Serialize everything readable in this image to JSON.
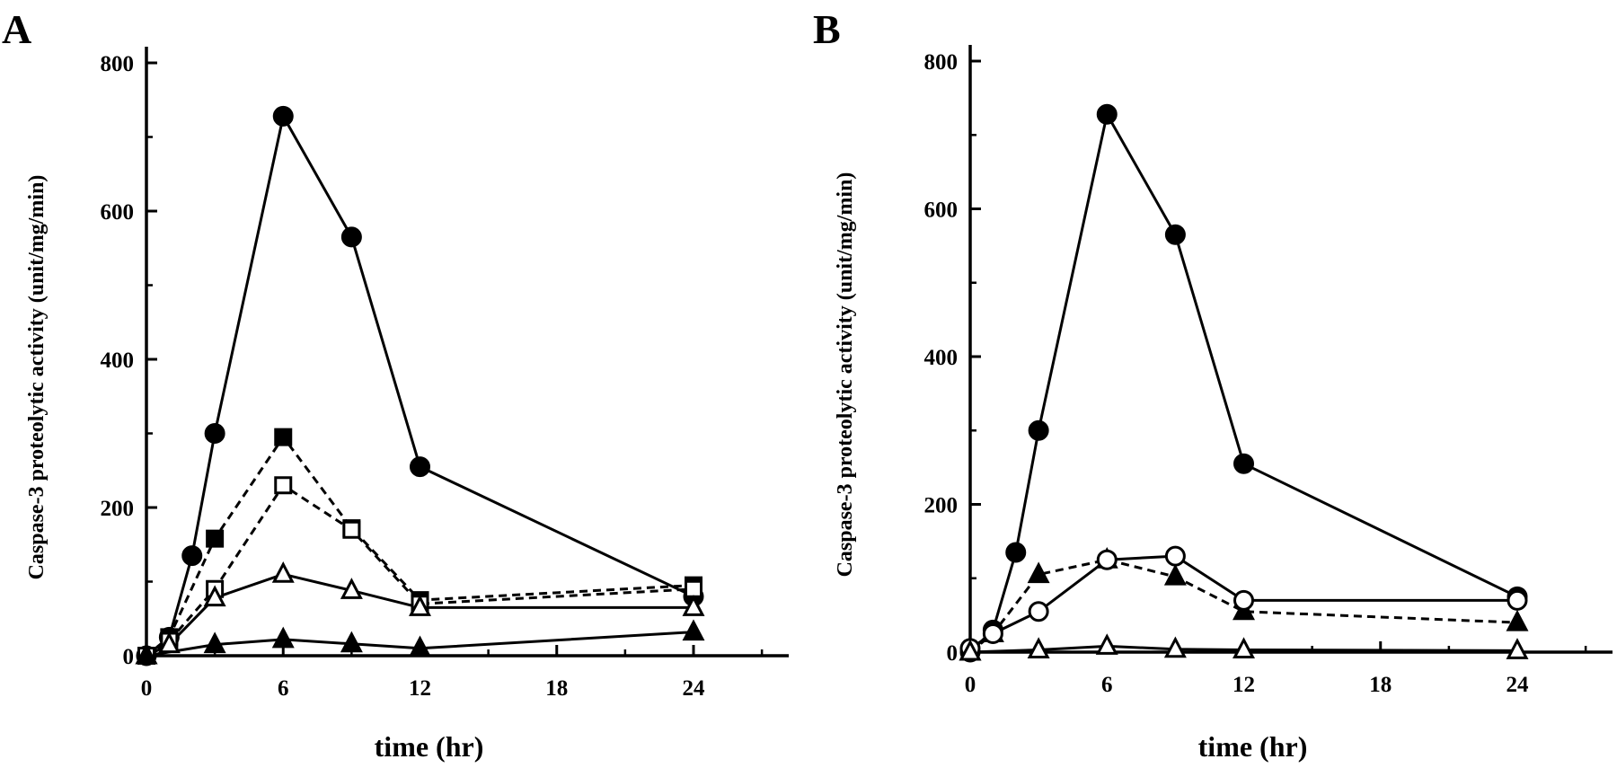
{
  "chart_data": [
    {
      "type": "line",
      "panel_label": "A",
      "xlabel": "time (hr)",
      "ylabel": "Caspase-3 proteolytic activity (unit/mg/min)",
      "xlim": [
        0,
        28
      ],
      "ylim": [
        0,
        820
      ],
      "xticks": [
        0,
        6,
        12,
        18,
        24
      ],
      "yticks": [
        0,
        200,
        400,
        600,
        800
      ],
      "grid": false,
      "series": [
        {
          "marker": "circle-filled",
          "line": "solid",
          "points": [
            [
              0,
              0
            ],
            [
              1,
              25
            ],
            [
              2,
              135
            ],
            [
              3,
              300
            ],
            [
              6,
              728
            ],
            [
              9,
              565
            ],
            [
              12,
              255
            ],
            [
              24,
              80
            ]
          ]
        },
        {
          "marker": "square-filled",
          "line": "dashed",
          "points": [
            [
              0,
              0
            ],
            [
              1,
              25
            ],
            [
              3,
              158
            ],
            [
              6,
              295
            ],
            [
              9,
              172
            ],
            [
              12,
              75
            ],
            [
              24,
              95
            ]
          ]
        },
        {
          "marker": "square-open",
          "line": "dashed",
          "points": [
            [
              0,
              0
            ],
            [
              1,
              20
            ],
            [
              3,
              90
            ],
            [
              6,
              230
            ],
            [
              9,
              170
            ],
            [
              12,
              70
            ],
            [
              24,
              90
            ]
          ]
        },
        {
          "marker": "triangle-open",
          "line": "solid",
          "points": [
            [
              0,
              0
            ],
            [
              1,
              15
            ],
            [
              3,
              78
            ],
            [
              6,
              110
            ],
            [
              9,
              88
            ],
            [
              12,
              65
            ],
            [
              24,
              65
            ]
          ]
        },
        {
          "marker": "triangle-filled",
          "line": "solid",
          "points": [
            [
              0,
              0
            ],
            [
              3,
              15
            ],
            [
              6,
              22
            ],
            [
              9,
              16
            ],
            [
              12,
              10
            ],
            [
              24,
              32
            ]
          ]
        }
      ]
    },
    {
      "type": "line",
      "panel_label": "B",
      "xlabel": "time (hr)",
      "ylabel": "Caspase-3 proteolytic activity (unit/mg/min)",
      "xlim": [
        0,
        28
      ],
      "ylim": [
        0,
        820
      ],
      "xticks": [
        0,
        6,
        12,
        18,
        24
      ],
      "yticks": [
        0,
        200,
        400,
        600,
        800
      ],
      "grid": false,
      "series": [
        {
          "marker": "circle-filled",
          "line": "solid",
          "points": [
            [
              0,
              0
            ],
            [
              1,
              30
            ],
            [
              2,
              135
            ],
            [
              3,
              300
            ],
            [
              6,
              728
            ],
            [
              9,
              565
            ],
            [
              12,
              255
            ],
            [
              24,
              75
            ]
          ]
        },
        {
          "marker": "triangle-filled",
          "line": "dashed",
          "points": [
            [
              0,
              0
            ],
            [
              1,
              25
            ],
            [
              3,
              105
            ],
            [
              6,
              125
            ],
            [
              9,
              102
            ],
            [
              12,
              55
            ],
            [
              24,
              40
            ]
          ]
        },
        {
          "marker": "circle-open",
          "line": "solid",
          "points": [
            [
              0,
              5
            ],
            [
              1,
              25
            ],
            [
              3,
              55
            ],
            [
              6,
              125
            ],
            [
              9,
              130
            ],
            [
              12,
              70
            ],
            [
              24,
              70
            ]
          ]
        },
        {
          "marker": "triangle-open",
          "line": "solid",
          "points": [
            [
              0,
              0
            ],
            [
              3,
              3
            ],
            [
              6,
              8
            ],
            [
              9,
              4
            ],
            [
              12,
              3
            ],
            [
              24,
              2
            ]
          ]
        }
      ]
    }
  ]
}
